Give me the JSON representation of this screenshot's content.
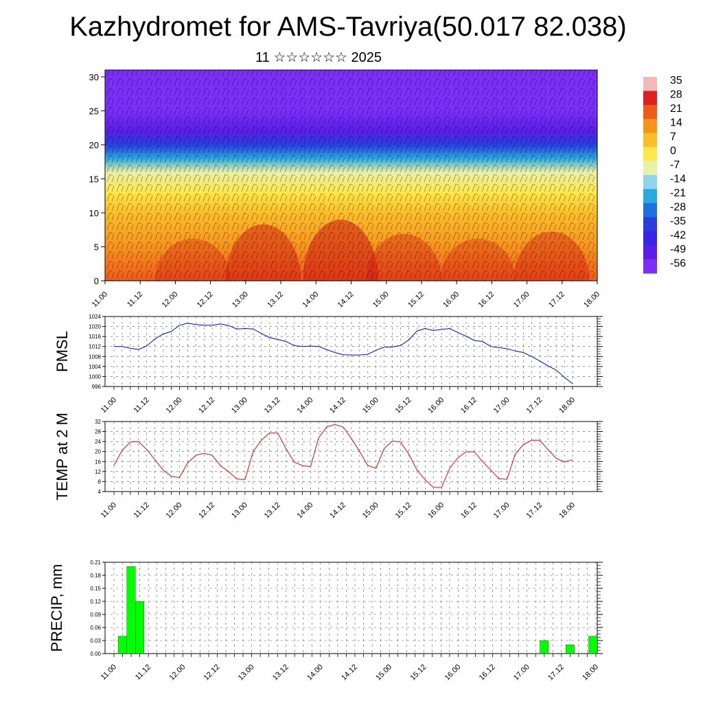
{
  "title": "Kazhydromet for AMS-Tavriya(50.017 82.038)",
  "subtitle": "11 ☆☆☆☆☆☆ 2025",
  "chart_data": [
    {
      "type": "heatmap",
      "x_tick_labels": [
        "11.00",
        "11.12",
        "12.00",
        "12.12",
        "13.00",
        "13.12",
        "14.00",
        "14.12",
        "15.00",
        "15.12",
        "16.00",
        "16.12",
        "17.00",
        "17.12",
        "18.00"
      ],
      "y_ticks": [
        0,
        5,
        10,
        15,
        20,
        25,
        30
      ],
      "ylim": [
        0,
        31
      ],
      "colorbar_labels": [
        "35",
        "28",
        "21",
        "14",
        "7",
        "0",
        "-7",
        "-14",
        "-21",
        "-28",
        "-35",
        "-42",
        "-49",
        "-56"
      ],
      "colorbar_colors": [
        "#f4b8b8",
        "#e02020",
        "#f05a1a",
        "#f7941c",
        "#fbbf2a",
        "#fde74c",
        "#e9f0a8",
        "#8fd3f0",
        "#2aa8e0",
        "#1e6fe0",
        "#2a3ee0",
        "#3a24e8",
        "#5a1ee8",
        "#7b2ff7"
      ],
      "temperature_profile": [
        {
          "height": 0,
          "temp": 21
        },
        {
          "height": 5,
          "temp": 14
        },
        {
          "height": 10,
          "temp": 9
        },
        {
          "height": 13,
          "temp": 3
        },
        {
          "height": 16,
          "temp": -7
        },
        {
          "height": 18,
          "temp": -21
        },
        {
          "height": 20,
          "temp": -35
        },
        {
          "height": 22,
          "temp": -49
        },
        {
          "height": 25,
          "temp": -56
        },
        {
          "height": 31,
          "temp": -56
        }
      ]
    },
    {
      "type": "line",
      "ylabel": "PMSL",
      "ylim": [
        996,
        1024
      ],
      "y_ticks": [
        996,
        1000,
        1004,
        1008,
        1012,
        1016,
        1020,
        1024
      ],
      "x_tick_labels": [
        "11.00",
        "11.12",
        "12.00",
        "12.12",
        "13.00",
        "13.12",
        "14.00",
        "14.12",
        "15.00",
        "15.12",
        "16.00",
        "16.12",
        "17.00",
        "17.12",
        "18.00"
      ],
      "color": "#0000ff",
      "series": [
        {
          "values": [
            1012.0,
            1012.0,
            1011.3,
            1010.8,
            1012.2,
            1015.0,
            1017.0,
            1018.0,
            1020.5,
            1021.3,
            1020.8,
            1020.5,
            1020.5,
            1021.0,
            1020.4,
            1019.0,
            1019.2,
            1019.0,
            1017.2,
            1015.6,
            1014.8,
            1014.0,
            1012.4,
            1012.0,
            1012.2,
            1012.0,
            1010.7,
            1009.6,
            1008.7,
            1008.6,
            1008.6,
            1008.9,
            1010.5,
            1011.7,
            1011.8,
            1012.4,
            1014.6,
            1018.2,
            1019.2,
            1018.4,
            1018.8,
            1019.2,
            1017.6,
            1016.1,
            1014.4,
            1014.0,
            1012.0,
            1011.6,
            1011.1,
            1010.2,
            1009.6,
            1008.0,
            1006.2,
            1004.3,
            1002.6,
            999.7,
            997.1
          ]
        }
      ]
    },
    {
      "type": "line",
      "ylabel": "TEMP at 2 M",
      "ylim": [
        4,
        32
      ],
      "y_ticks": [
        4,
        8,
        12,
        16,
        20,
        24,
        28,
        32
      ],
      "x_tick_labels": [
        "11.00",
        "11.12",
        "12.00",
        "12.12",
        "13.00",
        "13.12",
        "14.00",
        "14.12",
        "15.00",
        "15.12",
        "16.00",
        "16.12",
        "17.00",
        "17.12",
        "18.00"
      ],
      "color": "#ff0000",
      "series": [
        {
          "values": [
            14.5,
            20.5,
            23.8,
            24.0,
            20.8,
            16.8,
            12.6,
            10.1,
            9.6,
            15.5,
            18.5,
            19.3,
            18.5,
            14.4,
            12.0,
            9.0,
            8.8,
            20.0,
            24.5,
            27.4,
            27.4,
            21.2,
            15.8,
            14.4,
            13.9,
            25.5,
            29.9,
            30.8,
            29.8,
            25.2,
            20.0,
            14.4,
            13.3,
            21.2,
            24.2,
            23.8,
            19.0,
            12.6,
            8.7,
            5.7,
            5.6,
            13.3,
            17.5,
            19.9,
            19.9,
            16.0,
            12.7,
            9.1,
            8.9,
            19.0,
            22.8,
            24.5,
            24.5,
            20.8,
            17.3,
            15.8,
            16.7
          ]
        }
      ]
    },
    {
      "type": "bar",
      "ylabel": "PRECIP, mm",
      "ylim": [
        0,
        0.21
      ],
      "y_ticks": [
        "0.00",
        "0.03",
        "0.06",
        "0.09",
        "0.12",
        "0.15",
        "0.18",
        "0.21"
      ],
      "x_tick_labels": [
        "11.00",
        "11.12",
        "12.00",
        "12.12",
        "13.00",
        "13.12",
        "14.00",
        "14.12",
        "15.00",
        "15.12",
        "16.00",
        "16.12",
        "17.00",
        "17.12",
        "18.00"
      ],
      "color": "#00ff00",
      "bars": [
        {
          "t": 3,
          "value": 0.04
        },
        {
          "t": 6,
          "value": 0.2
        },
        {
          "t": 9,
          "value": 0.12
        },
        {
          "t": 150,
          "value": 0.03
        },
        {
          "t": 159,
          "value": 0.02
        },
        {
          "t": 168,
          "value": 0.04
        }
      ]
    }
  ]
}
